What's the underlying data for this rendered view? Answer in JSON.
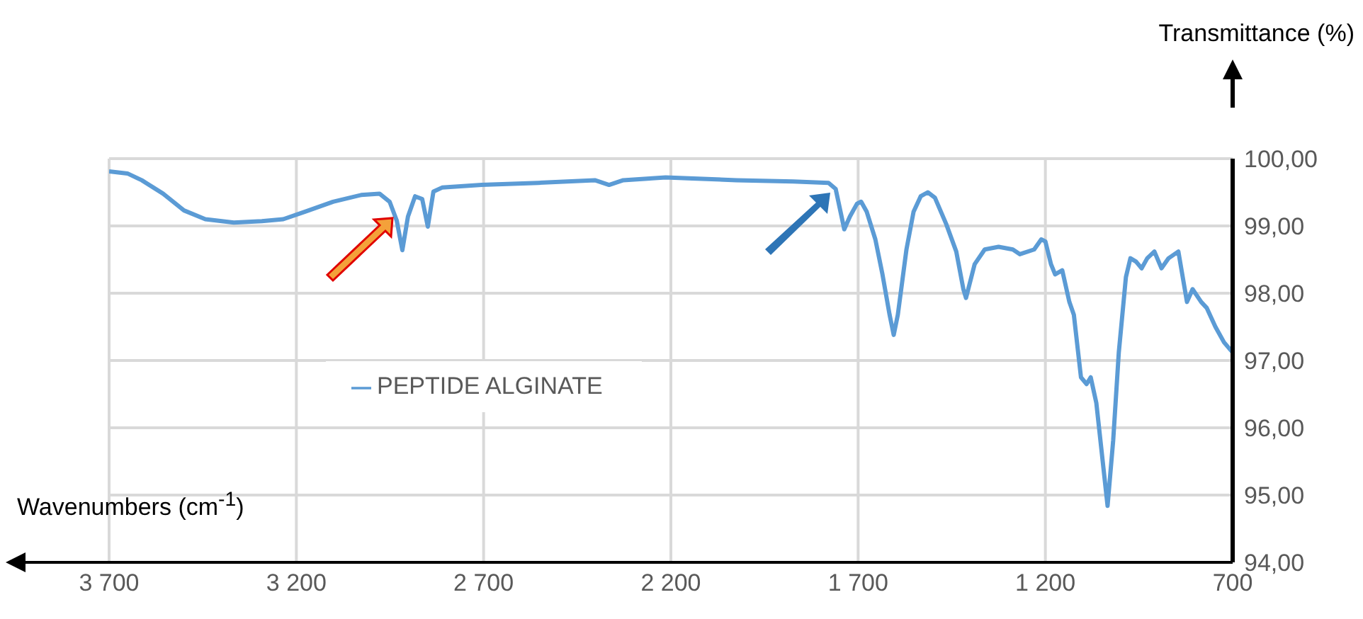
{
  "chart_data": {
    "type": "line",
    "xlabel": "Wavenumbers (cm$^{-1}$)",
    "ylabel": "Transmittance (%)",
    "xlim": [
      3700,
      700
    ],
    "ylim": [
      94,
      100
    ],
    "xticks": [
      {
        "value": 3700,
        "label": "3 700"
      },
      {
        "value": 3200,
        "label": "3 200"
      },
      {
        "value": 2700,
        "label": "2 700"
      },
      {
        "value": 2200,
        "label": "2 200"
      },
      {
        "value": 1700,
        "label": "1 700"
      },
      {
        "value": 1200,
        "label": "1 200"
      },
      700
    ],
    "yticks": [
      {
        "value": 94,
        "label": "94,00"
      },
      {
        "value": 95,
        "label": "95,00"
      },
      {
        "value": 96,
        "label": "96,00"
      },
      {
        "value": 97,
        "label": "97,00"
      },
      {
        "value": 98,
        "label": "98,00"
      },
      {
        "value": 99,
        "label": "99,00"
      },
      {
        "value": 100,
        "label": "100,00"
      }
    ],
    "grid": true,
    "legend": "center",
    "marker": "none",
    "line_style": "solid",
    "series": [
      {
        "name": "PEPTIDE ALGINATE",
        "color": "#5b9bd5",
        "x": [
          3700,
          3651,
          3613,
          3556,
          3500,
          3443,
          3367,
          3292,
          3235,
          3178,
          3102,
          3027,
          2978,
          2951,
          2932,
          2917,
          2902,
          2883,
          2864,
          2849,
          2834,
          2811,
          2705,
          2554,
          2403,
          2365,
          2327,
          2214,
          2025,
          1873,
          1779,
          1760,
          1737,
          1722,
          1703,
          1692,
          1677,
          1654,
          1635,
          1616,
          1605,
          1594,
          1571,
          1552,
          1533,
          1514,
          1495,
          1465,
          1438,
          1419,
          1412,
          1389,
          1362,
          1325,
          1287,
          1268,
          1230,
          1211,
          1200,
          1185,
          1174,
          1155,
          1136,
          1124,
          1105,
          1090,
          1079,
          1064,
          1053,
          1034,
          1019,
          1004,
          985,
          973,
          958,
          943,
          928,
          909,
          890,
          871,
          845,
          822,
          807,
          784,
          769,
          746,
          723,
          700
        ],
        "values": [
          99.81,
          99.78,
          99.68,
          99.48,
          99.23,
          99.1,
          99.05,
          99.07,
          99.1,
          99.21,
          99.36,
          99.46,
          99.48,
          99.36,
          99.08,
          98.64,
          99.14,
          99.44,
          99.4,
          98.99,
          99.51,
          99.57,
          99.61,
          99.64,
          99.68,
          99.61,
          99.68,
          99.72,
          99.68,
          99.66,
          99.64,
          99.55,
          98.95,
          99.14,
          99.33,
          99.36,
          99.21,
          98.8,
          98.28,
          97.68,
          97.38,
          97.68,
          98.65,
          99.21,
          99.44,
          99.5,
          99.42,
          99.03,
          98.62,
          98.06,
          97.93,
          98.43,
          98.65,
          98.69,
          98.65,
          98.58,
          98.65,
          98.8,
          98.77,
          98.43,
          98.28,
          98.34,
          97.87,
          97.68,
          96.75,
          96.65,
          96.75,
          96.37,
          95.81,
          94.84,
          95.81,
          97.12,
          98.24,
          98.52,
          98.47,
          98.37,
          98.52,
          98.62,
          98.37,
          98.52,
          98.62,
          97.87,
          98.06,
          97.87,
          97.78,
          97.5,
          97.27,
          97.12
        ]
      }
    ]
  }
}
